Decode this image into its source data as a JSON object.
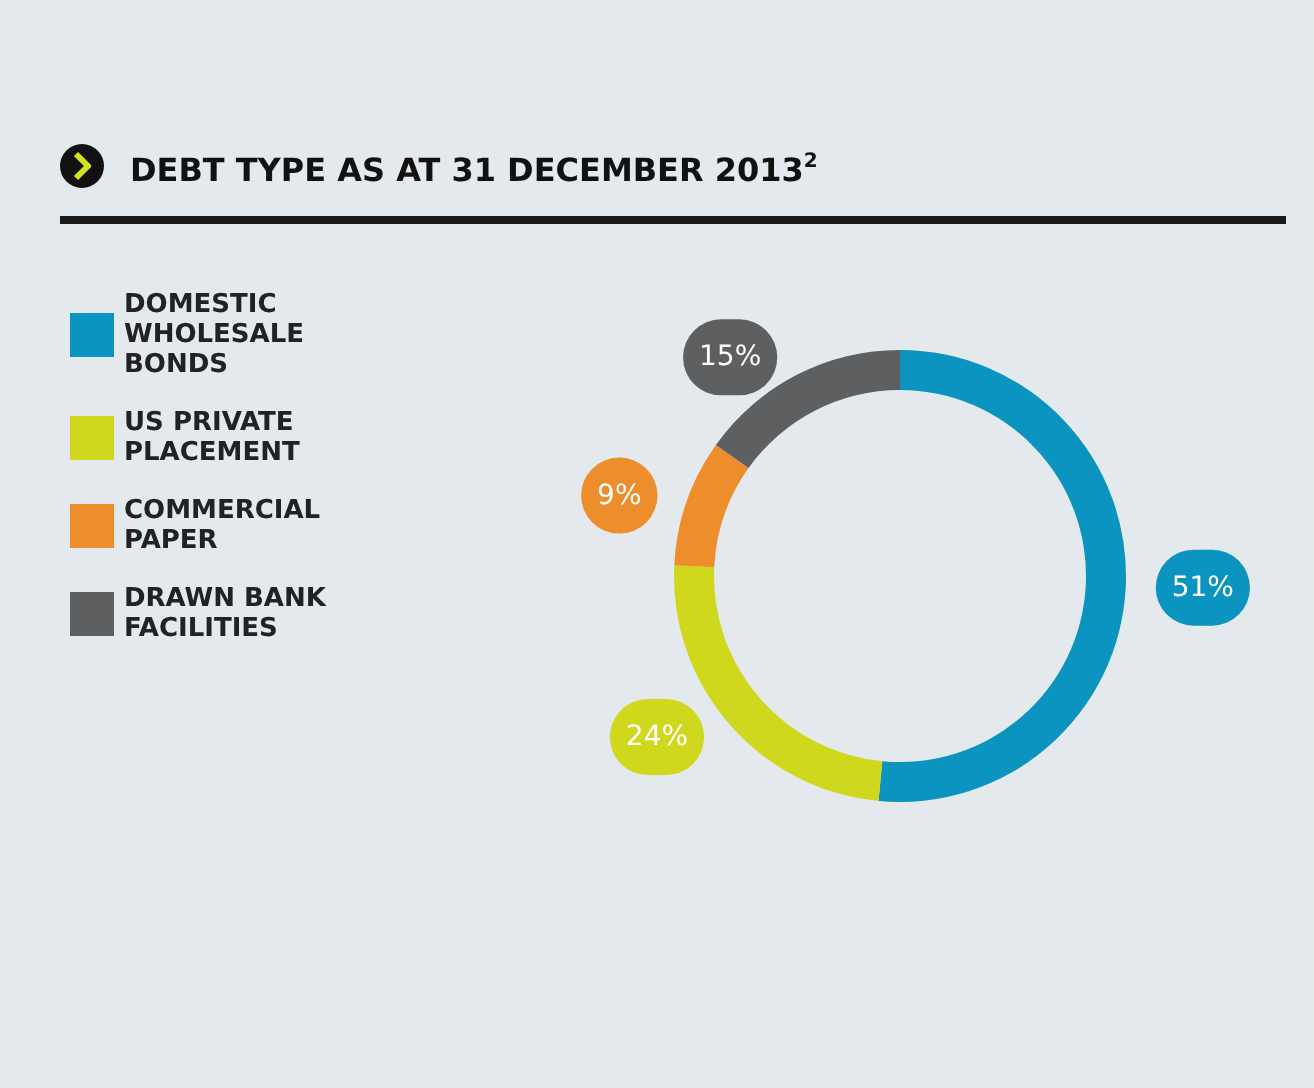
{
  "chart_data": {
    "type": "donut",
    "title": "DEBT TYPE AS AT 31 DECEMBER 2013$^{2}$",
    "categories": [
      "DOMESTIC WHOLESALE BONDS",
      "US PRIVATE PLACEMENT",
      "COMMERCIAL PAPER",
      "DRAWN BANK FACILITIES"
    ],
    "values": [
      51,
      24,
      9,
      15
    ],
    "colors": [
      "#0a94bf",
      "#cfd81c",
      "#ee8d2c",
      "#5e5f61"
    ],
    "value_labels": [
      "51%",
      "24%",
      "9%",
      "15%"
    ],
    "legend": "left"
  }
}
